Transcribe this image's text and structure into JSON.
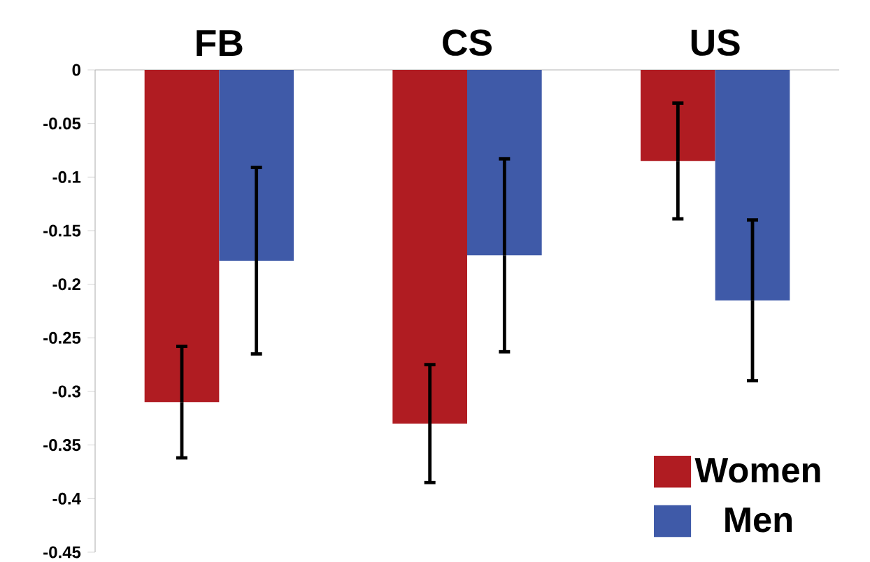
{
  "chart_data": {
    "type": "bar",
    "categories": [
      "FB",
      "CS",
      "US"
    ],
    "series": [
      {
        "name": "Women",
        "color": "#b01c22",
        "values": [
          -0.31,
          -0.33,
          -0.085
        ],
        "errors": [
          0.052,
          0.055,
          0.054
        ]
      },
      {
        "name": "Men",
        "color": "#3f5aa8",
        "values": [
          -0.178,
          -0.173,
          -0.215
        ],
        "errors": [
          0.087,
          0.09,
          0.075
        ]
      }
    ],
    "ylim": [
      -0.45,
      0
    ],
    "yticks": [
      0,
      -0.05,
      -0.1,
      -0.15,
      -0.2,
      -0.25,
      -0.3,
      -0.35,
      -0.4,
      -0.45
    ],
    "legend": "bottom right"
  }
}
